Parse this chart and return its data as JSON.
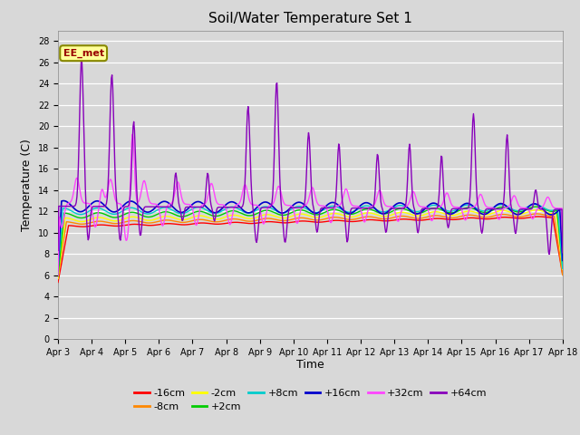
{
  "title": "Soil/Water Temperature Set 1",
  "ylabel": "Temperature (C)",
  "xlabel": "Time",
  "annotation": "EE_met",
  "bg_color": "#d8d8d8",
  "plot_bg_color": "#d8d8d8",
  "ylim": [
    0,
    29
  ],
  "yticks": [
    0,
    2,
    4,
    6,
    8,
    10,
    12,
    14,
    16,
    18,
    20,
    22,
    24,
    26,
    28
  ],
  "series": [
    {
      "label": "-16cm",
      "color": "#ff0000"
    },
    {
      "label": "-8cm",
      "color": "#ff8800"
    },
    {
      "label": "-2cm",
      "color": "#ffff00"
    },
    {
      "label": "+2cm",
      "color": "#00cc00"
    },
    {
      "label": "+8cm",
      "color": "#00cccc"
    },
    {
      "label": "+16cm",
      "color": "#0000cc"
    },
    {
      "label": "+32cm",
      "color": "#ff44ff"
    },
    {
      "label": "+64cm",
      "color": "#8800bb"
    }
  ]
}
